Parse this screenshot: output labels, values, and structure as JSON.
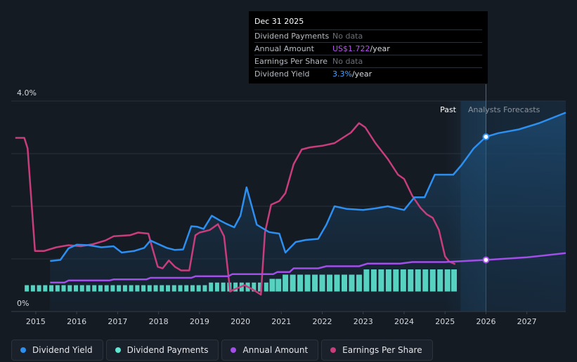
{
  "tooltip": {
    "date": "Dec 31 2025",
    "rows": [
      {
        "label": "Dividend Payments",
        "value": "No data",
        "unit": "",
        "color": "#6b7078"
      },
      {
        "label": "Annual Amount",
        "value": "US$1.722",
        "unit": "/year",
        "color": "#b455e8"
      },
      {
        "label": "Earnings Per Share",
        "value": "No data",
        "unit": "",
        "color": "#6b7078"
      },
      {
        "label": "Dividend Yield",
        "value": "3.3%",
        "unit": "/year",
        "color": "#4aa3ff"
      }
    ]
  },
  "regions": {
    "past": "Past",
    "forecast": "Analysts Forecasts"
  },
  "legend": [
    {
      "label": "Dividend Yield",
      "color": "#2d8ff0"
    },
    {
      "label": "Dividend Payments",
      "color": "#5ee6d1"
    },
    {
      "label": "Annual Amount",
      "color": "#a24ee8"
    },
    {
      "label": "Earnings Per Share",
      "color": "#c83d7c"
    }
  ],
  "chart_data": {
    "type": "line",
    "ylabel_top": "4.0%",
    "ylabel_bottom": "0%",
    "ylim": [
      0,
      4.0
    ],
    "xlim": [
      2014.4,
      2027.95
    ],
    "x_ticks": [
      "2015",
      "2016",
      "2017",
      "2018",
      "2019",
      "2020",
      "2021",
      "2022",
      "2023",
      "2024",
      "2025",
      "2026",
      "2027"
    ],
    "past_end": 2025.0,
    "forecast_start": 2026.0,
    "series": [
      {
        "name": "Dividend Yield",
        "unit": "%",
        "color": "#2d8ff0",
        "x": [
          2015.35,
          2015.6,
          2015.8,
          2016.0,
          2016.3,
          2016.6,
          2016.9,
          2017.1,
          2017.4,
          2017.65,
          2017.8,
          2018.2,
          2018.4,
          2018.6,
          2018.8,
          2018.95,
          2019.1,
          2019.3,
          2019.5,
          2019.65,
          2019.85,
          2020.0,
          2020.15,
          2020.25,
          2020.4,
          2020.7,
          2020.95,
          2021.1,
          2021.35,
          2021.6,
          2021.9,
          2022.1,
          2022.3,
          2022.6,
          2023.0,
          2023.3,
          2023.6,
          2024.0,
          2024.25,
          2024.5,
          2024.75,
          2024.95,
          2025.2,
          2025.4,
          2025.7,
          2026.0,
          2026.3,
          2026.8,
          2027.3,
          2027.95
        ],
        "values": [
          0.96,
          0.98,
          1.2,
          1.27,
          1.26,
          1.22,
          1.24,
          1.12,
          1.15,
          1.21,
          1.35,
          1.21,
          1.17,
          1.18,
          1.62,
          1.61,
          1.57,
          1.82,
          1.73,
          1.67,
          1.6,
          1.82,
          2.36,
          2.08,
          1.65,
          1.51,
          1.48,
          1.12,
          1.32,
          1.36,
          1.38,
          1.65,
          2.0,
          1.95,
          1.93,
          1.96,
          2.0,
          1.93,
          2.17,
          2.17,
          2.6,
          2.6,
          2.6,
          2.78,
          3.1,
          3.32,
          3.39,
          3.46,
          3.58,
          3.78
        ]
      },
      {
        "name": "Annual Amount",
        "unit": "relative",
        "color": "#a24ee8",
        "x": [
          2015.35,
          2015.7,
          2015.8,
          2016.8,
          2016.9,
          2017.7,
          2017.8,
          2018.8,
          2018.9,
          2019.7,
          2019.8,
          2020.8,
          2020.9,
          2021.2,
          2021.3,
          2021.9,
          2022.1,
          2022.9,
          2023.1,
          2023.9,
          2024.2,
          2025.0,
          2026.0,
          2027.0,
          2027.95
        ],
        "values": [
          0.55,
          0.55,
          0.59,
          0.59,
          0.61,
          0.61,
          0.64,
          0.64,
          0.67,
          0.67,
          0.71,
          0.71,
          0.75,
          0.75,
          0.82,
          0.82,
          0.86,
          0.86,
          0.91,
          0.91,
          0.94,
          0.94,
          0.98,
          1.03,
          1.11
        ]
      },
      {
        "name": "Earnings Per Share",
        "unit": "relative",
        "color": "#c83d7c",
        "x": [
          2014.5,
          2014.72,
          2014.8,
          2014.98,
          2015.2,
          2015.5,
          2015.8,
          2016.1,
          2016.4,
          2016.7,
          2016.9,
          2017.3,
          2017.5,
          2017.75,
          2017.85,
          2017.98,
          2018.1,
          2018.25,
          2018.4,
          2018.55,
          2018.75,
          2018.9,
          2019.0,
          2019.25,
          2019.45,
          2019.6,
          2019.75,
          2019.85,
          2020.1,
          2020.3,
          2020.5,
          2020.6,
          2020.75,
          2020.95,
          2021.1,
          2021.3,
          2021.5,
          2021.7,
          2022.0,
          2022.3,
          2022.7,
          2022.9,
          2023.05,
          2023.3,
          2023.6,
          2023.85,
          2024.0,
          2024.2,
          2024.4,
          2024.55,
          2024.7,
          2024.85,
          2025.0,
          2025.1,
          2025.25
        ],
        "values": [
          3.3,
          3.3,
          3.1,
          1.15,
          1.15,
          1.22,
          1.26,
          1.24,
          1.28,
          1.35,
          1.43,
          1.45,
          1.5,
          1.48,
          1.2,
          0.85,
          0.82,
          0.97,
          0.85,
          0.78,
          0.78,
          1.45,
          1.5,
          1.55,
          1.66,
          1.43,
          0.38,
          0.42,
          0.5,
          0.42,
          0.32,
          1.5,
          2.03,
          2.1,
          2.25,
          2.8,
          3.08,
          3.12,
          3.15,
          3.2,
          3.4,
          3.58,
          3.5,
          3.2,
          2.9,
          2.6,
          2.52,
          2.2,
          1.97,
          1.85,
          1.78,
          1.55,
          1.05,
          0.95,
          0.9
        ]
      },
      {
        "name": "Dividend Payments",
        "unit": "relative",
        "color": "#5ee6d1",
        "x": [
          2014.78,
          2014.93,
          2015.08,
          2015.23,
          2015.38,
          2015.53,
          2015.68,
          2015.83,
          2015.98,
          2016.13,
          2016.28,
          2016.43,
          2016.58,
          2016.73,
          2016.88,
          2017.03,
          2017.18,
          2017.33,
          2017.48,
          2017.63,
          2017.78,
          2017.93,
          2018.08,
          2018.23,
          2018.38,
          2018.53,
          2018.68,
          2018.83,
          2018.98,
          2019.13,
          2019.28,
          2019.43,
          2019.58,
          2019.73,
          2019.88,
          2020.03,
          2020.18,
          2020.33,
          2020.48,
          2020.63,
          2020.78,
          2020.93,
          2021.1,
          2021.28,
          2021.46,
          2021.64,
          2021.82,
          2022.0,
          2022.18,
          2022.36,
          2022.54,
          2022.72,
          2022.9,
          2023.08,
          2023.26,
          2023.44,
          2023.62,
          2023.8,
          2023.98,
          2024.16,
          2024.34,
          2024.52,
          2024.7,
          2024.88,
          2025.06,
          2025.22
        ],
        "values": [
          0.5,
          0.5,
          0.5,
          0.5,
          0.5,
          0.5,
          0.5,
          0.5,
          0.5,
          0.5,
          0.5,
          0.5,
          0.5,
          0.5,
          0.5,
          0.5,
          0.5,
          0.5,
          0.5,
          0.5,
          0.5,
          0.5,
          0.5,
          0.5,
          0.5,
          0.5,
          0.5,
          0.5,
          0.5,
          0.5,
          0.55,
          0.55,
          0.55,
          0.55,
          0.55,
          0.55,
          0.55,
          0.55,
          0.55,
          0.55,
          0.62,
          0.62,
          0.7,
          0.7,
          0.7,
          0.7,
          0.7,
          0.7,
          0.7,
          0.7,
          0.7,
          0.7,
          0.7,
          0.8,
          0.8,
          0.8,
          0.8,
          0.8,
          0.8,
          0.8,
          0.8,
          0.8,
          0.8,
          0.8,
          0.8,
          0.8
        ]
      }
    ],
    "highlight_points": [
      {
        "series": "Dividend Yield",
        "x": 2026.0,
        "value": 3.32
      },
      {
        "series": "Annual Amount",
        "x": 2026.0,
        "value": 0.98
      }
    ]
  }
}
